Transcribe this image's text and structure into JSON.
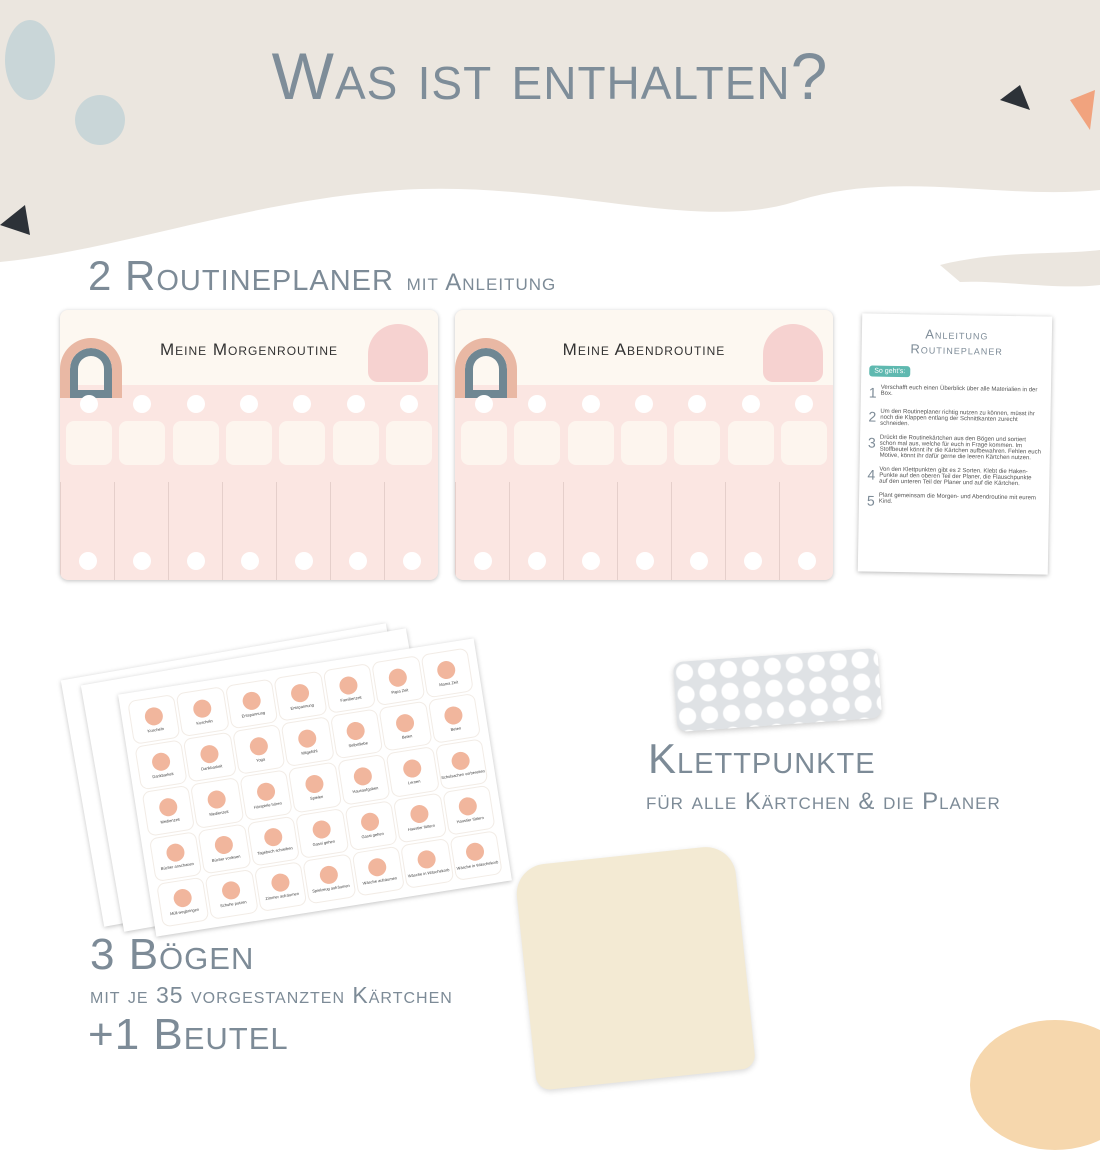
{
  "title": "Was ist enthalten?",
  "planer": {
    "heading": "2 Routineplaner",
    "heading_sub": "mit Anleitung",
    "morning_title": "Meine Morgenroutine",
    "evening_title": "Meine Abendroutine"
  },
  "anleitung": {
    "title1": "Anleitung",
    "title2": "Routineplaner",
    "badge": "So geht's:",
    "steps": [
      {
        "n": "1",
        "text": "Verschafft euch einen Überblick über alle Materialien in der Box."
      },
      {
        "n": "2",
        "text": "Um den Routineplaner richtig nutzen zu können, müsst ihr noch die Klappen entlang der Schnittkanten zurecht schneiden."
      },
      {
        "n": "3",
        "text": "Drückt die Routinekärtchen aus den Bögen und sortiert schon mal aus, welche für euch in Frage kommen. Im Stoffbeutel könnt ihr die Kärtchen aufbewahren. Fehlen euch Motive, könnt ihr dafür gerne die leeren Kärtchen nutzen."
      },
      {
        "n": "4",
        "text": "Von den Klettpunkten gibt es 2 Sorten. Klebt die Haken-Punkte auf den oberen Teil der Planer, die Flauschpunkte auf den unteren Teil der Planer und auf die Kärtchen."
      },
      {
        "n": "5",
        "text": "Plant gemeinsam die Morgen- und Abendroutine mit eurem Kind."
      }
    ]
  },
  "stickers": [
    "Kuscheln",
    "Kuscheln",
    "Entspannung",
    "Entspannung",
    "Familienzeit",
    "Papa Zeit",
    "Mama Zeit",
    "Dankbarkeit",
    "Dankbarkeit",
    "Yoga",
    "Mitgefühl",
    "Selbstliebe",
    "Beten",
    "Beten",
    "Medienzeit",
    "Medienzeit",
    "Hörspiele hören",
    "Spielen",
    "Hausaufgaben",
    "Lernen",
    "Schulsachen vorbereiten",
    "Bücher anschauen",
    "Bücher vorlesen",
    "Tagebuch schreiben",
    "Gassi gehen",
    "Gassi gehen",
    "Haustier füttern",
    "Haustier füttern",
    "Müll wegbringen",
    "Schuhe putzen",
    "Zimmer aufräumen",
    "Spielzeug aufräumen",
    "Wäsche aufräumen",
    "Wäsche in Wäschekorb",
    "Wäsche in Wäschekorb"
  ],
  "klett": {
    "heading": "Klettpunkte",
    "sub": "für alle Kärtchen & die Planer"
  },
  "boegen": {
    "heading": "3 Bögen",
    "sub": "mit je 35 vorgestanzten Kärtchen",
    "beutel": "+1 Beutel"
  },
  "colors": {
    "text": "#7e8d99",
    "background_top": "#ebe6df",
    "planer_pink": "#fbe6e2",
    "accent_teal": "#5fb9b0"
  }
}
